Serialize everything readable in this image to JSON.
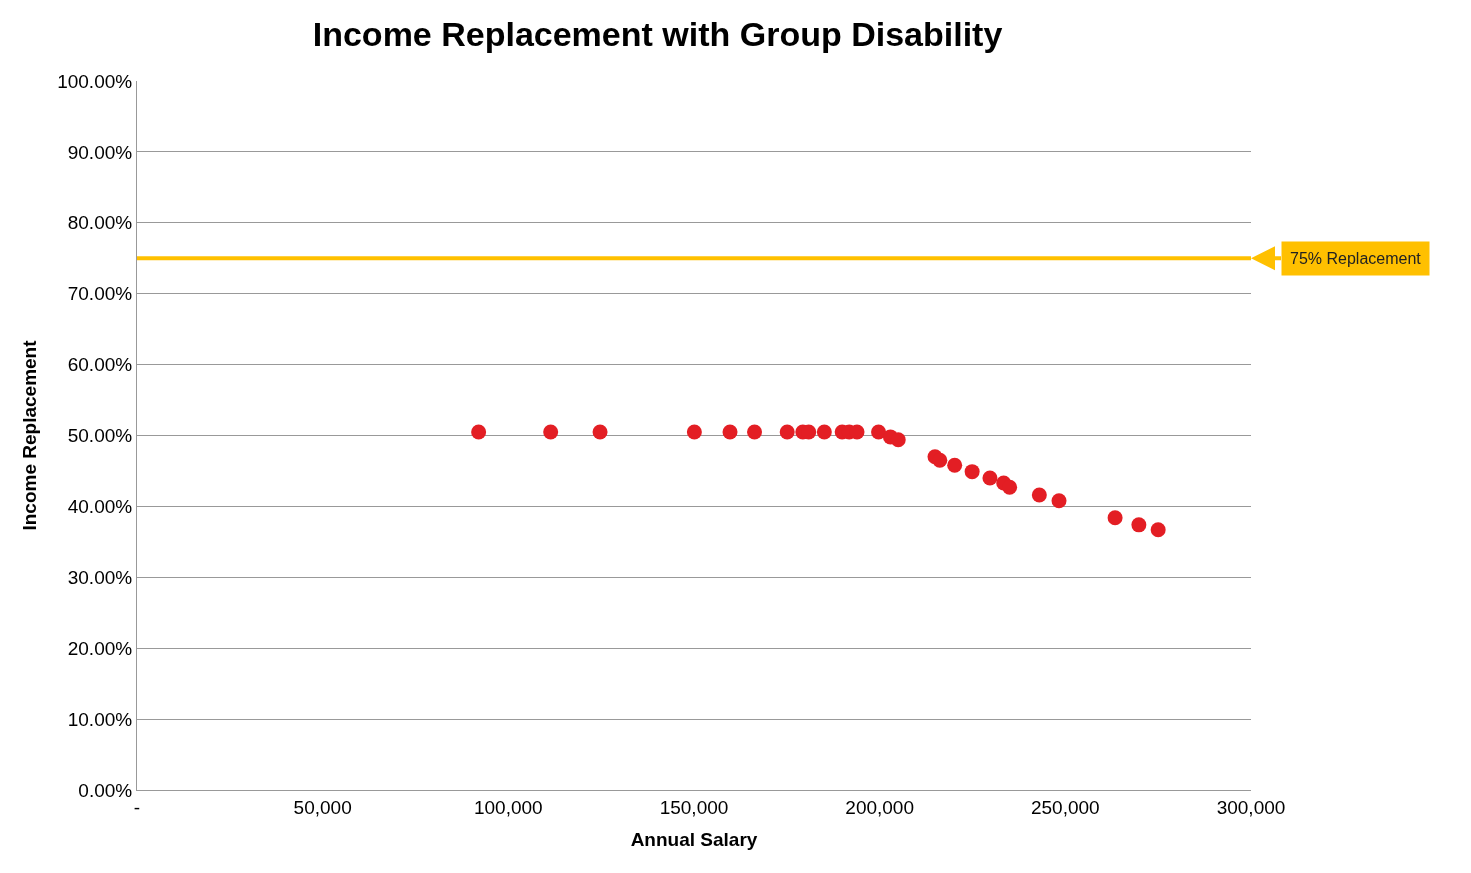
{
  "chart_data": {
    "type": "scatter",
    "title": "Income Replacement with Group Disability",
    "xlabel": "Annual Salary",
    "ylabel": "Income Replacement",
    "x": [
      92000,
      111400,
      124700,
      150100,
      159700,
      166300,
      175100,
      179300,
      180900,
      185100,
      189900,
      191800,
      193900,
      199700,
      202900,
      205000,
      214900,
      216200,
      220200,
      224900,
      229700,
      233400,
      235000,
      243000,
      248300,
      263400,
      269800,
      275000
    ],
    "series": [
      {
        "color": "#e31e24",
        "values": [
          50.5,
          50.5,
          50.5,
          50.5,
          50.5,
          50.5,
          50.5,
          50.5,
          50.5,
          50.5,
          50.5,
          50.5,
          50.5,
          50.5,
          49.8,
          49.4,
          47.0,
          46.5,
          45.8,
          44.9,
          44.0,
          43.3,
          42.7,
          41.6,
          40.8,
          38.4,
          37.4,
          36.7
        ]
      }
    ],
    "marker": "circle",
    "xlim": [
      0,
      300000
    ],
    "xticks": [
      {
        "value": 0,
        "label": "-"
      },
      {
        "value": 50000,
        "label": "50,000"
      },
      {
        "value": 100000,
        "label": "100,000"
      },
      {
        "value": 150000,
        "label": "150,000"
      },
      {
        "value": 200000,
        "label": "200,000"
      },
      {
        "value": 250000,
        "label": "250,000"
      },
      {
        "value": 300000,
        "label": "300,000"
      }
    ],
    "ylim": [
      0,
      100
    ],
    "yticks": [
      {
        "value": 0,
        "label": "0.00%"
      },
      {
        "value": 10,
        "label": "10.00%"
      },
      {
        "value": 20,
        "label": "20.00%"
      },
      {
        "value": 30,
        "label": "30.00%"
      },
      {
        "value": 40,
        "label": "40.00%"
      },
      {
        "value": 50,
        "label": "50.00%"
      },
      {
        "value": 60,
        "label": "60.00%"
      },
      {
        "value": 70,
        "label": "70.00%"
      },
      {
        "value": 80,
        "label": "80.00%"
      },
      {
        "value": 90,
        "label": "90.00%"
      },
      {
        "value": 100,
        "label": "100.00%"
      }
    ],
    "grid": "y",
    "legend": false,
    "ref_lines": [
      {
        "axis": "y",
        "value": 75,
        "label": "75% Replacement",
        "color": "#ffc000",
        "line_style": "solid"
      }
    ]
  }
}
